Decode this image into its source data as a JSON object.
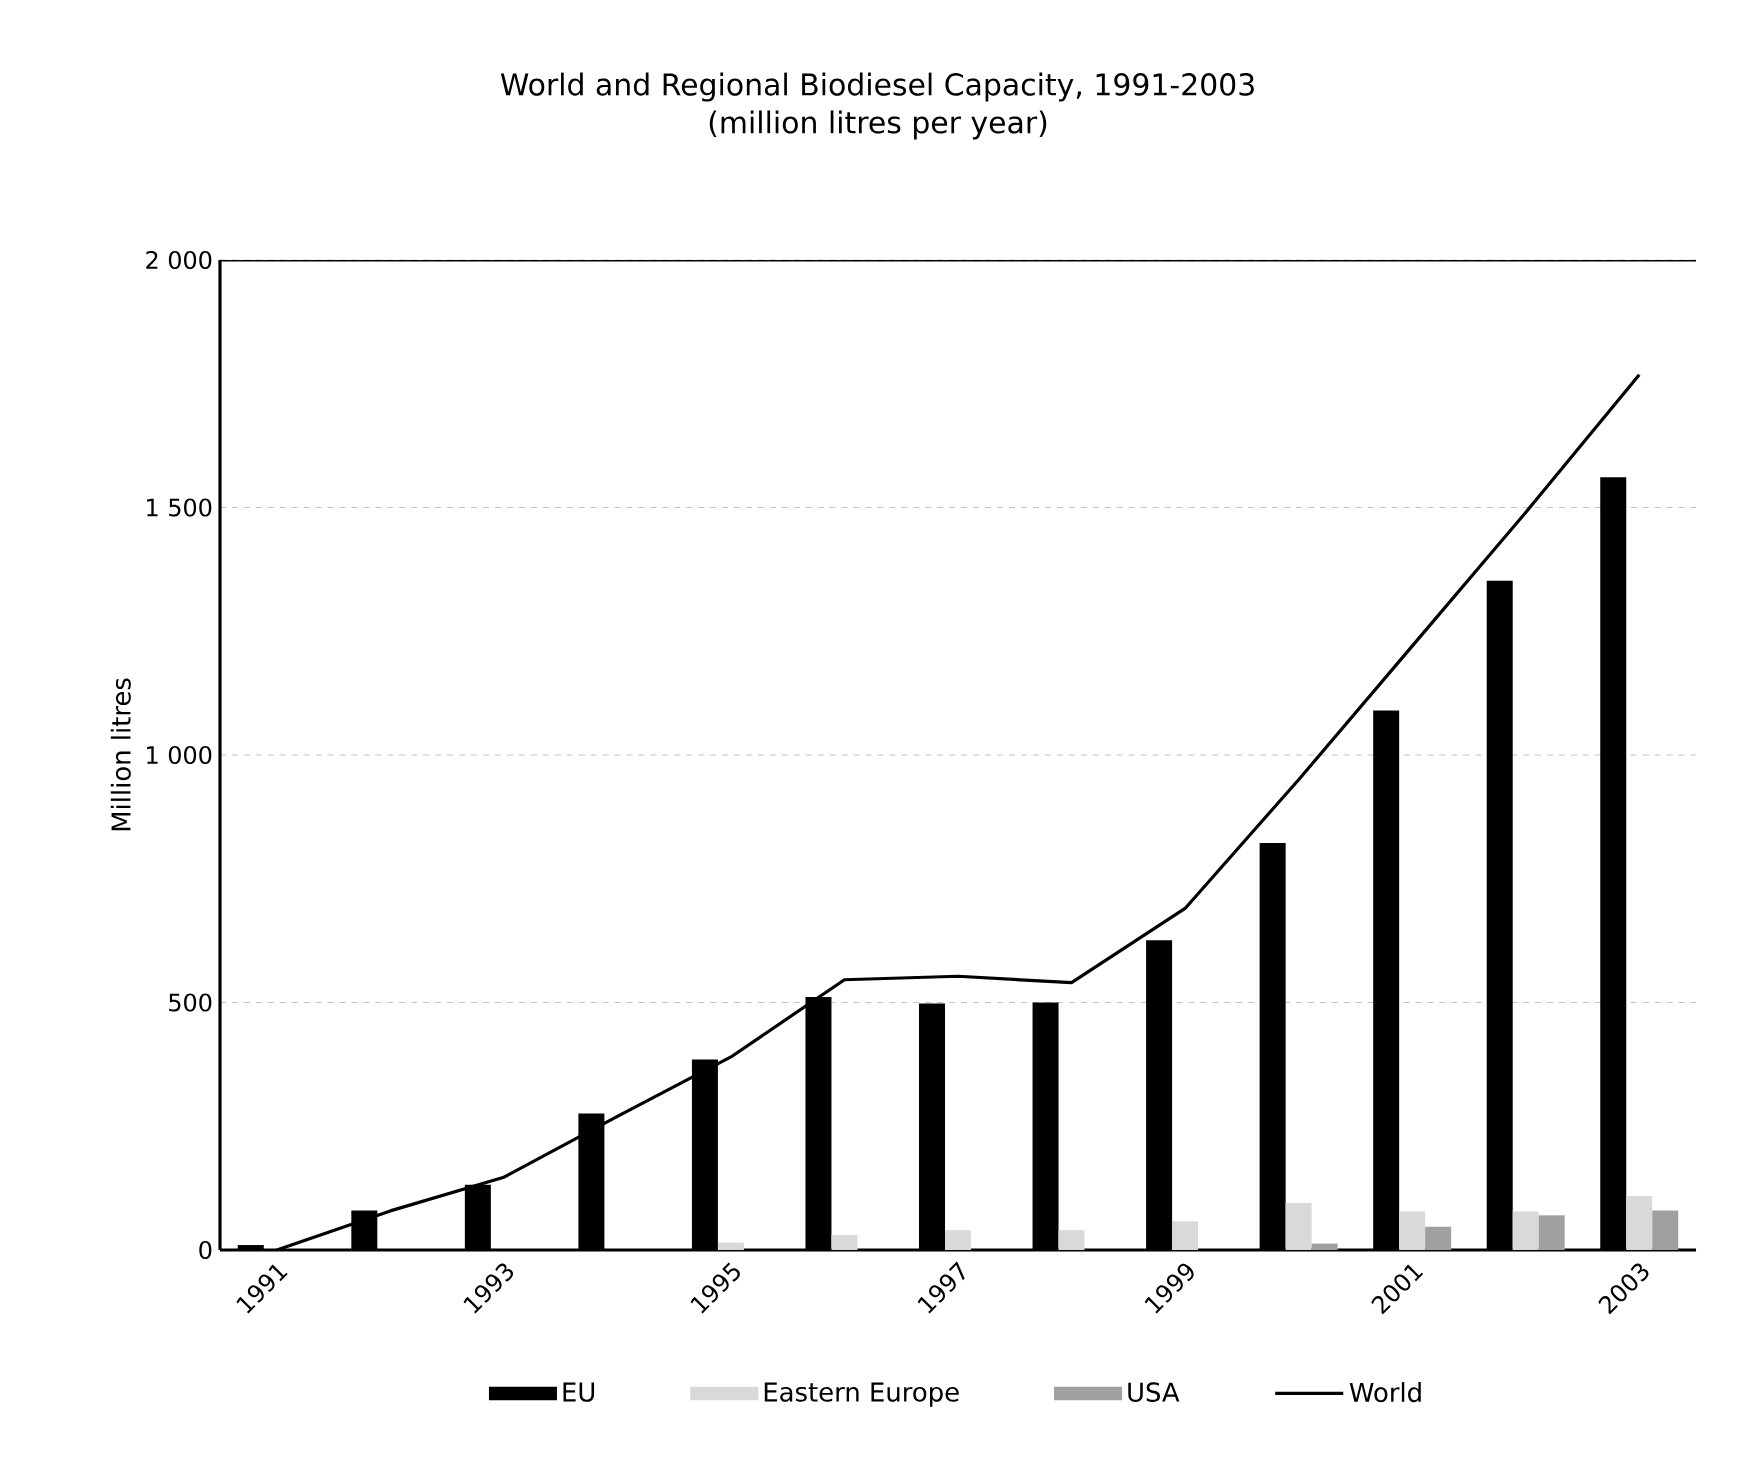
{
  "chart_data": {
    "type": "bar",
    "title": "World and Regional Biodiesel Capacity, 1991-2003",
    "subtitle": "(million litres per year)",
    "ylabel": "Million litres",
    "categories": [
      "1991",
      null,
      "1993",
      null,
      "1995",
      null,
      "1997",
      null,
      "1999",
      null,
      "2001",
      null,
      "2003"
    ],
    "series": [
      {
        "name": "EU",
        "color": "#000000",
        "values": [
          10,
          80,
          132,
          276,
          385,
          511,
          498,
          500,
          626,
          822,
          1090,
          1352,
          1561
        ]
      },
      {
        "name": "Eastern Europe",
        "color": "#d9d9d9",
        "values": [
          null,
          null,
          null,
          null,
          15,
          30,
          40,
          40,
          58,
          95,
          78,
          78,
          109
        ]
      },
      {
        "name": "USA",
        "color": "#a0a0a0",
        "values": [
          null,
          null,
          null,
          null,
          null,
          null,
          null,
          null,
          null,
          13,
          47,
          70,
          80
        ]
      },
      {
        "name": "World",
        "type": "line",
        "color": "#000000",
        "values": [
          0,
          79,
          147,
          270,
          390,
          546,
          553,
          540,
          690,
          950,
          1220,
          1490,
          1768
        ]
      }
    ],
    "ylim": [
      0,
      2000
    ],
    "yticks": [
      0,
      500,
      {
        "value": 1000,
        "label": "1 000"
      },
      {
        "value": 1500,
        "label": "1 500"
      },
      {
        "value": 2000,
        "label": "2 000"
      }
    ],
    "grid": "y",
    "legend": "bottom"
  }
}
